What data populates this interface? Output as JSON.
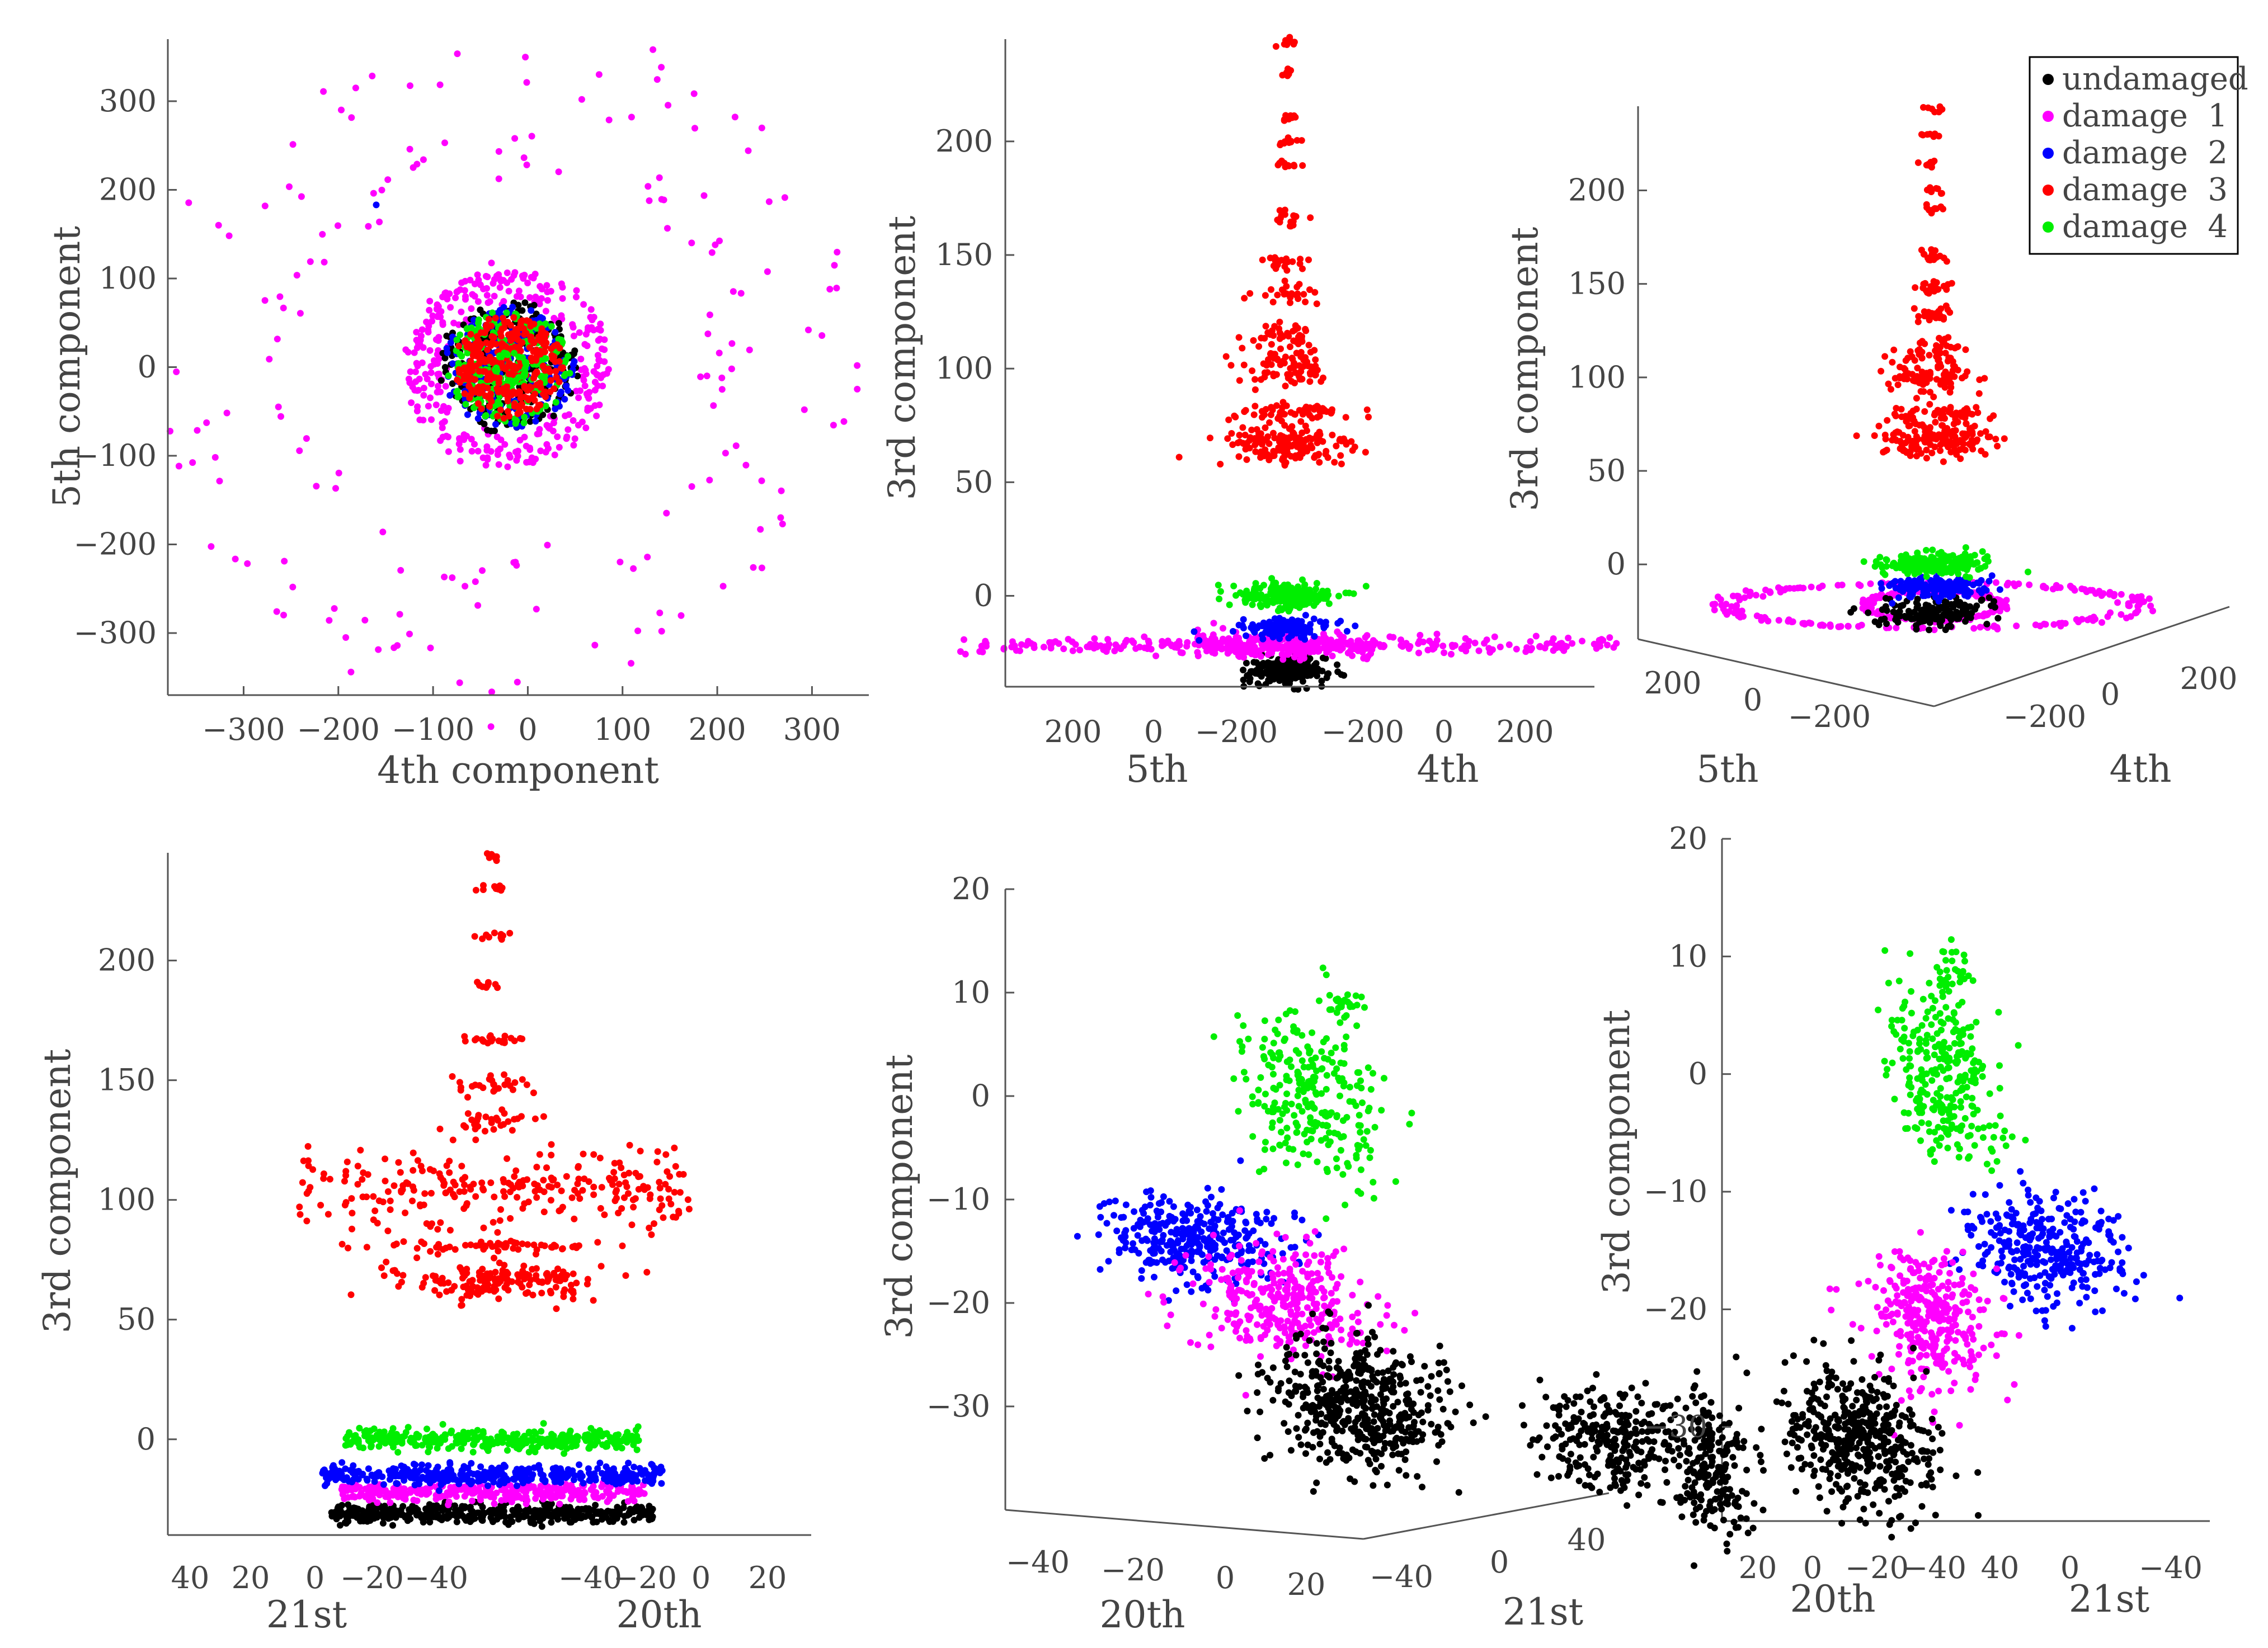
{
  "legend": [
    {
      "label": "undamaged",
      "color": "#000000"
    },
    {
      "label": "damage  1",
      "color": "#ff00ff"
    },
    {
      "label": "damage  2",
      "color": "#0000ff"
    },
    {
      "label": "damage  3",
      "color": "#ff0000"
    },
    {
      "label": "damage  4",
      "color": "#00ee00"
    }
  ],
  "chart_data": [
    {
      "type": "scatter",
      "view": "2d",
      "xlabel": "4th component",
      "ylabel": "5th component",
      "xlim": [
        -380,
        360
      ],
      "ylim": [
        -370,
        370
      ],
      "xticks": [
        -300,
        -200,
        -100,
        0,
        100,
        200,
        300
      ],
      "yticks": [
        -300,
        -200,
        -100,
        0,
        100,
        200,
        300
      ],
      "clusters": [
        {
          "series": "damage  1",
          "shape": "ring",
          "cx": -20,
          "cy": 0,
          "r": 345,
          "n": 90
        },
        {
          "series": "damage  1",
          "shape": "ring",
          "cx": -20,
          "cy": 0,
          "r": 240,
          "n": 80
        },
        {
          "series": "damage  1",
          "shape": "ring",
          "cx": -20,
          "cy": 0,
          "r": 100,
          "n": 220
        },
        {
          "series": "damage  1",
          "shape": "ring",
          "cx": -20,
          "cy": 0,
          "r": 80,
          "n": 100
        },
        {
          "series": "undamaged",
          "shape": "disk",
          "cx": -20,
          "cy": 0,
          "r": 75,
          "n": 250
        },
        {
          "series": "damage  2",
          "shape": "disk",
          "cx": -20,
          "cy": 0,
          "r": 70,
          "n": 200
        },
        {
          "series": "damage  4",
          "shape": "disk",
          "cx": -20,
          "cy": 0,
          "r": 65,
          "n": 200
        },
        {
          "series": "damage  3",
          "shape": "disk",
          "cx": -20,
          "cy": 0,
          "r": 58,
          "n": 300
        },
        {
          "series": "damage  4",
          "shape": "ring",
          "cx": -18,
          "cy": 0,
          "r": 16,
          "n": 30
        }
      ]
    },
    {
      "type": "scatter",
      "view": "3d",
      "zlabel": "3rd component",
      "xlabel_left": "5th",
      "xlabel_right": "4th",
      "zlim": [
        -40,
        245
      ],
      "zticks": [
        0,
        50,
        100,
        150,
        200
      ],
      "left_ticks": [
        "200",
        "0",
        "−200"
      ],
      "right_ticks": [
        "−200",
        "0",
        "200"
      ],
      "clusters": [
        {
          "series": "undamaged",
          "cx": 0,
          "z": -33,
          "sx": 35,
          "sz": 3,
          "n": 220
        },
        {
          "series": "damage  1",
          "cx": 0,
          "z": -22,
          "sx": 590,
          "sz": 2,
          "n": 260
        },
        {
          "series": "damage  1",
          "cx": 0,
          "z": -22,
          "sx": 160,
          "sz": 3,
          "n": 220
        },
        {
          "series": "damage  2",
          "cx": 0,
          "z": -14,
          "sx": 40,
          "sz": 2,
          "n": 120
        },
        {
          "series": "damage  4",
          "cx": 0,
          "z": 0,
          "sx": 45,
          "sz": 3,
          "n": 200
        },
        {
          "series": "damage  3",
          "cx": 0,
          "z": 66,
          "sx": 60,
          "sz": 5,
          "n": 150
        },
        {
          "series": "damage  3",
          "cx": 0,
          "z": 81,
          "sx": 55,
          "sz": 2,
          "n": 60
        },
        {
          "series": "damage  3",
          "cx": 0,
          "z": 100,
          "sx": 40,
          "sz": 4,
          "n": 80
        },
        {
          "series": "damage  3",
          "cx": 0,
          "z": 114,
          "sx": 35,
          "sz": 3,
          "n": 40
        },
        {
          "series": "damage  3",
          "cx": 0,
          "z": 133,
          "sx": 25,
          "sz": 2,
          "n": 25
        },
        {
          "series": "damage  3",
          "cx": 0,
          "z": 147,
          "sx": 22,
          "sz": 2,
          "n": 20
        },
        {
          "series": "damage  3",
          "cx": 0,
          "z": 166,
          "sx": 18,
          "sz": 2,
          "n": 16
        },
        {
          "series": "damage  3",
          "cx": 0,
          "z": 190,
          "sx": 12,
          "sz": 1,
          "n": 10
        },
        {
          "series": "damage  3",
          "cx": 0,
          "z": 200,
          "sx": 12,
          "sz": 1,
          "n": 10
        },
        {
          "series": "damage  3",
          "cx": 0,
          "z": 210,
          "sx": 12,
          "sz": 1,
          "n": 8
        },
        {
          "series": "damage  3",
          "cx": 0,
          "z": 230,
          "sx": 10,
          "sz": 1,
          "n": 8
        },
        {
          "series": "damage  3",
          "cx": 0,
          "z": 243,
          "sx": 10,
          "sz": 1,
          "n": 8
        }
      ]
    },
    {
      "type": "scatter",
      "view": "3d",
      "zlabel": "3rd component",
      "xlabel_left": "5th",
      "xlabel_right": "4th",
      "zlim": [
        -40,
        245
      ],
      "zticks": [
        0,
        50,
        100,
        150,
        200
      ],
      "left_ticks": [
        "200",
        "0",
        "−200"
      ],
      "right_ticks": [
        "−200",
        "0",
        "200"
      ],
      "clusters": [
        {
          "series": "damage  1",
          "shape": "ellipse",
          "cx": 0,
          "z": -22,
          "rx": 380,
          "rz": 12,
          "n": 200
        },
        {
          "series": "damage  1",
          "shape": "ellipse",
          "cx": 0,
          "z": -22,
          "rx": 120,
          "rz": 8,
          "n": 200
        },
        {
          "series": "undamaged",
          "cx": 0,
          "z": -26,
          "sx": 45,
          "sz": 4,
          "n": 160
        },
        {
          "series": "damage  2",
          "cx": 0,
          "z": -12,
          "sx": 45,
          "sz": 3,
          "n": 140
        },
        {
          "series": "damage  4",
          "cx": 0,
          "z": 0,
          "sx": 45,
          "sz": 3,
          "n": 200
        },
        {
          "series": "damage  3",
          "cx": 0,
          "z": 67,
          "sx": 50,
          "sz": 5,
          "n": 150
        },
        {
          "series": "damage  3",
          "cx": 0,
          "z": 81,
          "sx": 45,
          "sz": 2,
          "n": 50
        },
        {
          "series": "damage  3",
          "cx": 0,
          "z": 100,
          "sx": 38,
          "sz": 4,
          "n": 80
        },
        {
          "series": "damage  3",
          "cx": 0,
          "z": 114,
          "sx": 30,
          "sz": 3,
          "n": 40
        },
        {
          "series": "damage  3",
          "cx": 0,
          "z": 133,
          "sx": 20,
          "sz": 2,
          "n": 25
        },
        {
          "series": "damage  3",
          "cx": 0,
          "z": 148,
          "sx": 18,
          "sz": 2,
          "n": 20
        },
        {
          "series": "damage  3",
          "cx": 0,
          "z": 166,
          "sx": 15,
          "sz": 2,
          "n": 16
        },
        {
          "series": "damage  3",
          "cx": 0,
          "z": 190,
          "sx": 10,
          "sz": 1,
          "n": 10
        },
        {
          "series": "damage  3",
          "cx": 0,
          "z": 200,
          "sx": 10,
          "sz": 1,
          "n": 10
        },
        {
          "series": "damage  3",
          "cx": 0,
          "z": 214,
          "sx": 10,
          "sz": 1,
          "n": 8
        },
        {
          "series": "damage  3",
          "cx": 0,
          "z": 230,
          "sx": 10,
          "sz": 1,
          "n": 8
        },
        {
          "series": "damage  3",
          "cx": 0,
          "z": 243,
          "sx": 10,
          "sz": 1,
          "n": 8
        }
      ]
    },
    {
      "type": "scatter",
      "view": "3d",
      "zlabel": "3rd component",
      "xlabel_left": "21st",
      "xlabel_right": "20th",
      "zlim": [
        -40,
        245
      ],
      "zticks": [
        0,
        50,
        100,
        150,
        200
      ],
      "bottom_ticks": [
        "40",
        "20",
        "0",
        "−20",
        "−40",
        "−40",
        "−20",
        "0",
        "20"
      ],
      "clusters": [
        {
          "series": "undamaged",
          "cx": 0,
          "z": -31,
          "sx": 180,
          "sz": 2,
          "n": 450
        },
        {
          "series": "damage  1",
          "cx": 0,
          "z": -22,
          "sx": 170,
          "sz": 2,
          "n": 350
        },
        {
          "series": "damage  2",
          "cx": 0,
          "z": -15,
          "sx": 190,
          "sz": 2,
          "n": 400
        },
        {
          "series": "damage  4",
          "cx": 0,
          "z": 0,
          "sx": 165,
          "sz": 2,
          "n": 350
        },
        {
          "series": "damage  3",
          "cx": 0,
          "z": 66,
          "sx": 60,
          "sz": 4,
          "n": 160
        },
        {
          "series": "damage  3",
          "cx": 0,
          "z": 81,
          "sx": 70,
          "sz": 1,
          "n": 60
        },
        {
          "series": "damage  3",
          "cx": 0,
          "z": 105,
          "sx": 220,
          "sz": 8,
          "n": 250
        },
        {
          "series": "damage  3",
          "cx": 0,
          "z": 133,
          "sx": 22,
          "sz": 2,
          "n": 30
        },
        {
          "series": "damage  3",
          "cx": 0,
          "z": 148,
          "sx": 22,
          "sz": 2,
          "n": 26
        },
        {
          "series": "damage  3",
          "cx": 0,
          "z": 167,
          "sx": 20,
          "sz": 1,
          "n": 22
        },
        {
          "series": "damage  3",
          "cx": 0,
          "z": 190,
          "sx": 10,
          "sz": 1,
          "n": 10
        },
        {
          "series": "damage  3",
          "cx": 0,
          "z": 210,
          "sx": 10,
          "sz": 1,
          "n": 10
        },
        {
          "series": "damage  3",
          "cx": 0,
          "z": 230,
          "sx": 10,
          "sz": 1,
          "n": 10
        },
        {
          "series": "damage  3",
          "cx": 0,
          "z": 243,
          "sx": 8,
          "sz": 1,
          "n": 8
        }
      ]
    },
    {
      "type": "scatter",
      "view": "3d",
      "zlabel": "3rd component",
      "xlabel_left": "20th",
      "xlabel_right": "21st",
      "zlim": [
        -40,
        20
      ],
      "zticks": [
        -30,
        -20,
        -10,
        0,
        10,
        20
      ],
      "left_ticks": [
        "−40",
        "−20",
        "0",
        "20"
      ],
      "right_ticks": [
        "−40",
        "0",
        "40"
      ],
      "clusters": [
        {
          "series": "damage  4",
          "x": -1.5,
          "z": 0,
          "sx": 3,
          "sz": 4,
          "n": 260
        },
        {
          "series": "damage  4",
          "x": 1.5,
          "z": 9,
          "sx": 1,
          "sz": 1,
          "n": 30
        },
        {
          "series": "damage  2",
          "x": -12,
          "z": -14,
          "sx": 4,
          "sz": 2.2,
          "n": 320
        },
        {
          "series": "damage  1",
          "x": -4,
          "z": -20,
          "sx": 4,
          "sz": 2.8,
          "n": 320
        },
        {
          "series": "undamaged",
          "x": 3,
          "z": -30,
          "sx": 4,
          "sz": 3,
          "n": 500
        },
        {
          "series": "undamaged",
          "x": 25,
          "z": -33,
          "sx": 3,
          "sz": 2.5,
          "n": 250
        }
      ]
    },
    {
      "type": "scatter",
      "view": "3d",
      "zlabel": "3rd component",
      "xlabel_left": "20th",
      "xlabel_right": "21st",
      "zlim": [
        -38,
        20
      ],
      "zticks": [
        -30,
        -20,
        -10,
        0,
        10,
        20
      ],
      "bottom_ticks": [
        "20",
        "0",
        "−20",
        "−40",
        "40",
        "0",
        "−40"
      ],
      "clusters": [
        {
          "series": "damage  4",
          "x": -4,
          "z": 0,
          "sx": 2.5,
          "sz": 3.5,
          "n": 280
        },
        {
          "series": "damage  4",
          "x": -3,
          "z": 9,
          "sx": 1,
          "sz": 1,
          "n": 30
        },
        {
          "series": "damage  2",
          "x": 6,
          "z": -15,
          "sx": 3.5,
          "sz": 2.3,
          "n": 320
        },
        {
          "series": "damage  1",
          "x": -5,
          "z": -21,
          "sx": 3,
          "sz": 3,
          "n": 320
        },
        {
          "series": "undamaged",
          "x": -12,
          "z": -31,
          "sx": 3.5,
          "sz": 3,
          "n": 450
        },
        {
          "series": "undamaged",
          "x": -26,
          "z": -33,
          "sx": 2.2,
          "sz": 3,
          "n": 220
        }
      ]
    }
  ]
}
